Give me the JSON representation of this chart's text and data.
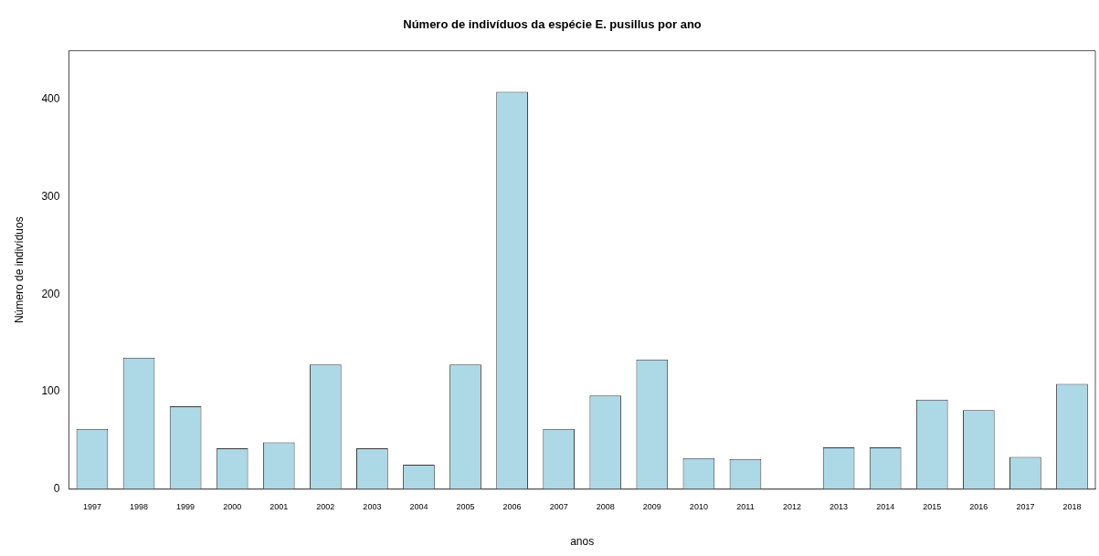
{
  "chart_data": {
    "type": "bar",
    "title": "Número de indivíduos da espécie E. pusillus por ano",
    "xlabel": "anos",
    "ylabel": "Número de indivíduos",
    "categories": [
      "1997",
      "1998",
      "1999",
      "2000",
      "2001",
      "2002",
      "2003",
      "2004",
      "2005",
      "2006",
      "2007",
      "2008",
      "2009",
      "2010",
      "2011",
      "2012",
      "2013",
      "2014",
      "2015",
      "2016",
      "2017",
      "2018"
    ],
    "values": [
      62,
      135,
      85,
      42,
      48,
      128,
      42,
      25,
      128,
      408,
      62,
      96,
      133,
      32,
      31,
      0,
      43,
      43,
      92,
      81,
      33,
      108
    ],
    "color": "#add8e6",
    "ylim": [
      0,
      450
    ],
    "yticks": [
      0,
      100,
      200,
      300,
      400
    ],
    "grid": false,
    "legend": false
  }
}
